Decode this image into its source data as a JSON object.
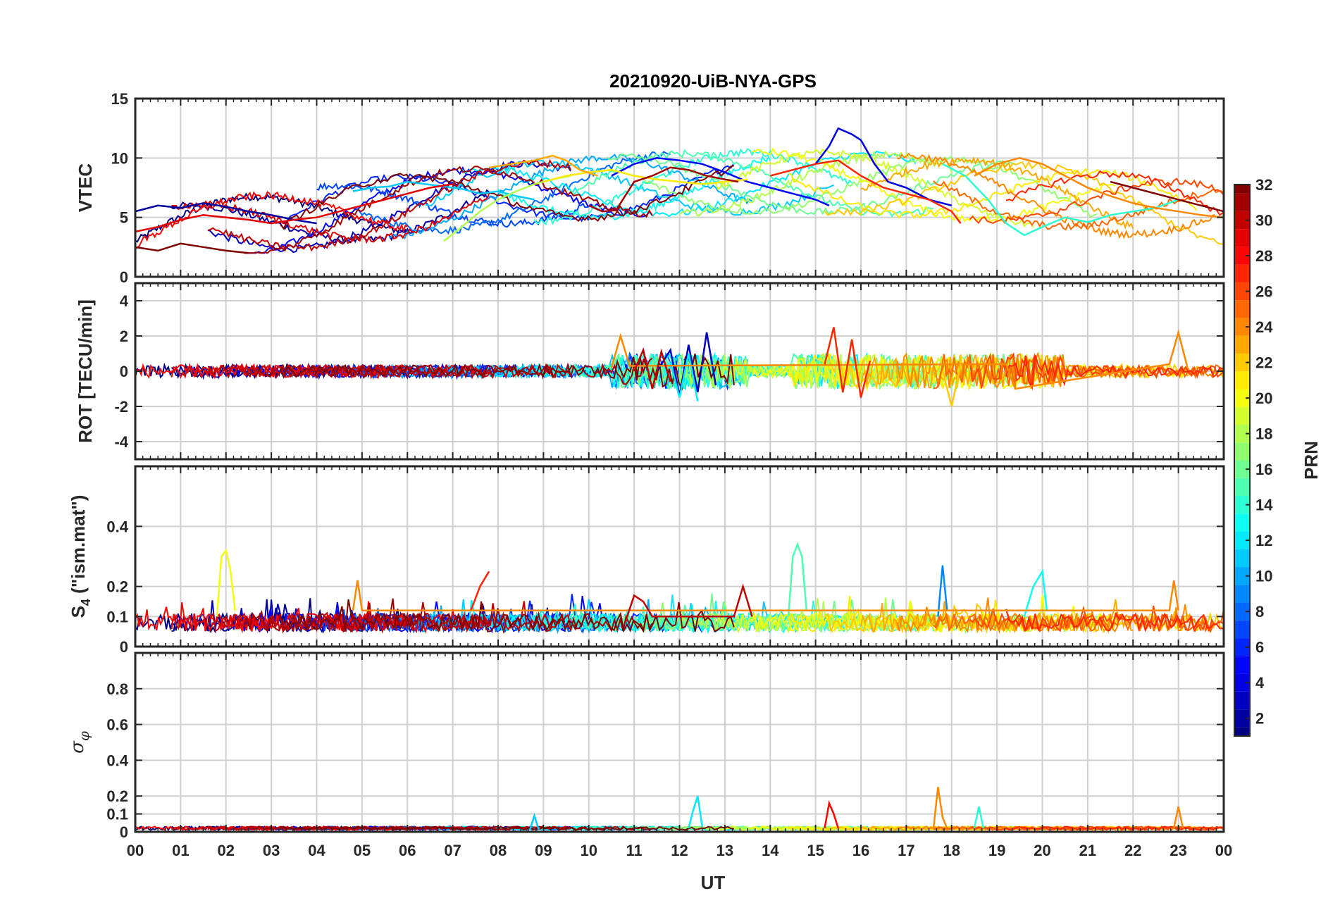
{
  "figure": {
    "title": "20210920-UiB-NYA-GPS",
    "x_axis_label": "UT"
  },
  "colors": {
    "axis": "#262626",
    "grid": "#d0d0d0",
    "background": "#ffffff"
  },
  "chart_data": [
    {
      "type": "line",
      "panel": "vtec",
      "ylabel": "VTEC",
      "xlim": [
        0,
        24
      ],
      "ylim": [
        0,
        15
      ],
      "x_ticks": [
        "00",
        "01",
        "02",
        "03",
        "04",
        "05",
        "06",
        "07",
        "08",
        "09",
        "10",
        "11",
        "12",
        "13",
        "14",
        "15",
        "16",
        "17",
        "18",
        "19",
        "20",
        "21",
        "22",
        "23",
        "00"
      ],
      "y_ticks": [
        0,
        5,
        10,
        15
      ],
      "grid": true,
      "series": [
        {
          "prn": 2,
          "x": [
            0,
            0.5,
            1,
            1.5,
            2,
            2.5,
            3,
            3.5,
            4
          ],
          "y": [
            5.5,
            6,
            5.8,
            6.2,
            5.9,
            5.5,
            5.2,
            4.8,
            4.5
          ]
        },
        {
          "prn": 5,
          "x": [
            10.5,
            11,
            11.5,
            12,
            12.5,
            13,
            13.5,
            14,
            14.5,
            15,
            15.3
          ],
          "y": [
            8.5,
            9.5,
            10,
            9.8,
            9.5,
            8.8,
            8,
            7.5,
            7,
            6.5,
            6
          ]
        },
        {
          "prn": 4,
          "x": [
            15,
            15.3,
            15.5,
            15.8,
            16,
            16.3,
            16.6,
            17,
            17.5,
            18
          ],
          "y": [
            9.5,
            11,
            12.5,
            12,
            11.5,
            9.5,
            8,
            7.5,
            6.5,
            6
          ]
        },
        {
          "prn": 11,
          "x": [
            4.8,
            5.2,
            5.6,
            6,
            6.4,
            6.8,
            7.2,
            7.6,
            8,
            8.4,
            8.8
          ],
          "y": [
            7.2,
            7.5,
            7.6,
            8,
            7.8,
            7.6,
            7.4,
            7,
            7.2,
            6.8,
            6.5
          ]
        },
        {
          "prn": 14,
          "x": [
            17.8,
            18.3,
            18.8,
            19.2,
            19.6,
            20,
            20.5,
            21,
            21.5,
            22,
            22.5,
            23
          ],
          "y": [
            9.5,
            8.5,
            6.5,
            4.5,
            3.5,
            4.2,
            5,
            4.6,
            5.2,
            5.5,
            5.8,
            6.5
          ]
        },
        {
          "prn": 18,
          "x": [
            6.8,
            7.2,
            7.6,
            8,
            8.4,
            8.8,
            9.2,
            9.6
          ],
          "y": [
            3,
            4.2,
            5.5,
            6.5,
            7.2,
            7.8,
            8.2,
            8.5
          ]
        },
        {
          "prn": 21,
          "x": [
            9,
            9.5,
            10,
            10.5,
            11,
            11.5,
            12,
            12.5,
            13,
            13.5
          ],
          "y": [
            8,
            8.5,
            8.8,
            9,
            8.5,
            8.2,
            8,
            7.8,
            8,
            8.2
          ]
        },
        {
          "prn": 23,
          "x": [
            7.8,
            8.3,
            8.8,
            9.2,
            9.5,
            9.8,
            10.2
          ],
          "y": [
            9.2,
            9.5,
            9.8,
            10.2,
            9.8,
            9,
            8.5
          ]
        },
        {
          "prn": 24,
          "x": [
            18.5,
            19,
            19.5,
            20,
            20.5,
            21,
            21.5,
            22,
            22.5,
            23,
            23.5,
            24
          ],
          "y": [
            8.5,
            9.5,
            10,
            9.5,
            8.5,
            7.5,
            6.8,
            6.2,
            5.8,
            5.5,
            5.2,
            5
          ]
        },
        {
          "prn": 27,
          "x": [
            14,
            14.5,
            15,
            15.5,
            16,
            16.5,
            17,
            17.5,
            18,
            18.2
          ],
          "y": [
            8.5,
            9,
            9.5,
            9.8,
            8.5,
            7.5,
            7,
            6.5,
            5.5,
            4.5
          ]
        },
        {
          "prn": 29,
          "x": [
            0,
            0.5,
            1,
            1.5,
            2,
            2.5,
            3,
            3.5,
            4,
            4.5,
            5,
            5.5,
            6,
            6.5,
            7
          ],
          "y": [
            3.8,
            4.2,
            4.8,
            5.2,
            5,
            4.8,
            4.5,
            4.8,
            5,
            5.5,
            6,
            6.5,
            7,
            7.5,
            7.8
          ]
        },
        {
          "prn": 31,
          "x": [
            10,
            10.3,
            10.6,
            11,
            11.4,
            11.8,
            12.2,
            12.6,
            13,
            13.3
          ],
          "y": [
            6,
            5.5,
            5.6,
            8,
            8.5,
            9.2,
            9,
            8.5,
            8.2,
            8
          ]
        },
        {
          "prn": 32,
          "x": [
            0,
            0.5,
            1,
            1.5,
            2,
            2.5
          ],
          "y": [
            2.5,
            2.2,
            2.8,
            2.5,
            2.2,
            2
          ]
        },
        {
          "prn": 32,
          "x": [
            21.5,
            22,
            22.5,
            23,
            23.5,
            24
          ],
          "y": [
            8,
            7.5,
            7,
            6.5,
            6,
            5.5
          ]
        }
      ]
    },
    {
      "type": "line",
      "panel": "rot",
      "ylabel": "ROT [TECU/min]",
      "xlim": [
        0,
        24
      ],
      "ylim": [
        -5,
        5
      ],
      "x_ticks": [
        "00",
        "01",
        "02",
        "03",
        "04",
        "05",
        "06",
        "07",
        "08",
        "09",
        "10",
        "11",
        "12",
        "13",
        "14",
        "15",
        "16",
        "17",
        "18",
        "19",
        "20",
        "21",
        "22",
        "23",
        "00"
      ],
      "y_ticks": [
        -4,
        -2,
        0,
        2,
        4
      ],
      "grid": true,
      "series": [
        {
          "prn": 3,
          "x": [
            11.5,
            11.8,
            12,
            12.2,
            12.4,
            12.6,
            12.8
          ],
          "y": [
            0,
            1.2,
            -1.4,
            1.5,
            -1.2,
            2.2,
            -0.8
          ]
        },
        {
          "prn": 12,
          "x": [
            11.8,
            12,
            12.2,
            12.4
          ],
          "y": [
            0.5,
            -1.5,
            1,
            -1.7
          ]
        },
        {
          "prn": 24,
          "x": [
            10.5,
            10.7,
            10.9,
            19.2,
            19.4,
            22.8,
            23,
            23.2
          ],
          "y": [
            0.2,
            2,
            0.3,
            0.4,
            -1,
            0.4,
            2.2,
            0.2
          ]
        },
        {
          "prn": 27,
          "x": [
            15.2,
            15.4,
            15.6,
            15.8,
            16,
            16.2
          ],
          "y": [
            0.4,
            2.5,
            -1.2,
            1.8,
            -1.5,
            0.6
          ]
        },
        {
          "prn": 30,
          "x": [
            11,
            11.2,
            11.4,
            11.6,
            11.8
          ],
          "y": [
            0,
            1.2,
            -1,
            1.1,
            -0.6
          ]
        },
        {
          "prn": 22,
          "x": [
            17.8,
            18,
            18.2
          ],
          "y": [
            0,
            -2,
            0.4
          ]
        }
      ]
    },
    {
      "type": "line",
      "panel": "s4",
      "ylabel": "S4 (\"ism.mat\")",
      "xlim": [
        0,
        24
      ],
      "ylim": [
        0,
        0.6
      ],
      "x_ticks": [
        "00",
        "01",
        "02",
        "03",
        "04",
        "05",
        "06",
        "07",
        "08",
        "09",
        "10",
        "11",
        "12",
        "13",
        "14",
        "15",
        "16",
        "17",
        "18",
        "19",
        "20",
        "21",
        "22",
        "23",
        "00"
      ],
      "y_ticks": [
        0,
        0.1,
        0.2,
        0.4
      ],
      "grid": true,
      "series": [
        {
          "prn": 20,
          "x": [
            1.8,
            1.9,
            2,
            2.1,
            2.2
          ],
          "y": [
            0.1,
            0.3,
            0.32,
            0.25,
            0.12
          ]
        },
        {
          "prn": 15,
          "x": [
            14.4,
            14.5,
            14.6,
            14.7,
            14.8
          ],
          "y": [
            0.1,
            0.3,
            0.34,
            0.3,
            0.12
          ]
        },
        {
          "prn": 27,
          "x": [
            7.4,
            7.6,
            7.8
          ],
          "y": [
            0.12,
            0.2,
            0.25
          ]
        },
        {
          "prn": 9,
          "x": [
            17.7,
            17.8,
            17.9
          ],
          "y": [
            0.1,
            0.27,
            0.12
          ]
        },
        {
          "prn": 13,
          "x": [
            19.6,
            19.8,
            20,
            20.1
          ],
          "y": [
            0.1,
            0.2,
            0.25,
            0.12
          ]
        },
        {
          "prn": 24,
          "x": [
            4.8,
            4.9,
            5,
            22.8,
            22.9,
            23
          ],
          "y": [
            0.12,
            0.22,
            0.12,
            0.12,
            0.22,
            0.12
          ]
        },
        {
          "prn": 30,
          "x": [
            10.8,
            11,
            11.2,
            11.4,
            13.2,
            13.4,
            13.6
          ],
          "y": [
            0.08,
            0.17,
            0.15,
            0.1,
            0.1,
            0.2,
            0.1
          ]
        }
      ]
    },
    {
      "type": "line",
      "panel": "sigma_phi",
      "ylabel": "σφ",
      "xlim": [
        0,
        24
      ],
      "ylim": [
        0,
        1
      ],
      "x_ticks": [
        "00",
        "01",
        "02",
        "03",
        "04",
        "05",
        "06",
        "07",
        "08",
        "09",
        "10",
        "11",
        "12",
        "13",
        "14",
        "15",
        "16",
        "17",
        "18",
        "19",
        "20",
        "21",
        "22",
        "23",
        "00"
      ],
      "y_ticks": [
        0,
        0.1,
        0.2,
        0.4,
        0.6,
        0.8
      ],
      "grid": true,
      "series": [
        {
          "prn": 12,
          "x": [
            12.2,
            12.3,
            12.4,
            12.5
          ],
          "y": [
            0.02,
            0.12,
            0.2,
            0.03
          ]
        },
        {
          "prn": 28,
          "x": [
            15.2,
            15.3,
            15.4,
            15.5
          ],
          "y": [
            0.02,
            0.16,
            0.1,
            0.02
          ]
        },
        {
          "prn": 24,
          "x": [
            17.6,
            17.7,
            17.8,
            17.9
          ],
          "y": [
            0.02,
            0.25,
            0.08,
            0.02
          ]
        },
        {
          "prn": 14,
          "x": [
            18.5,
            18.6,
            18.7
          ],
          "y": [
            0.02,
            0.14,
            0.02
          ]
        },
        {
          "prn": 24,
          "x": [
            22.9,
            23,
            23.1
          ],
          "y": [
            0.02,
            0.14,
            0.02
          ]
        },
        {
          "prn": 11,
          "x": [
            8.7,
            8.8,
            8.9
          ],
          "y": [
            0.01,
            0.09,
            0.01
          ]
        }
      ]
    }
  ],
  "colorbar": {
    "label": "PRN",
    "ticks": [
      2,
      4,
      6,
      8,
      10,
      12,
      14,
      16,
      18,
      20,
      22,
      24,
      26,
      28,
      30,
      32
    ],
    "range": [
      1,
      32
    ],
    "colormap": "jet"
  }
}
